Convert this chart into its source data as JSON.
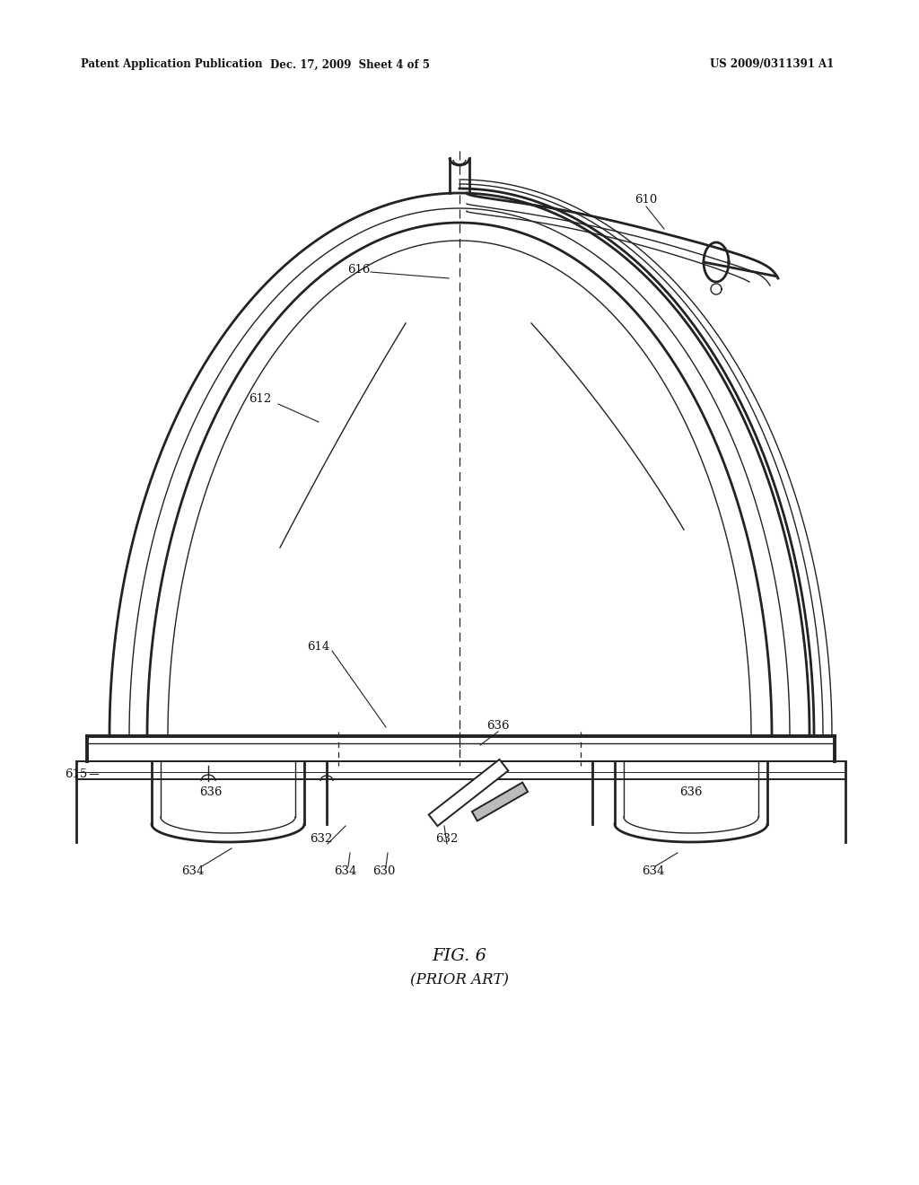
{
  "background_color": "#ffffff",
  "header_left": "Patent Application Publication",
  "header_middle": "Dec. 17, 2009  Sheet 4 of 5",
  "header_right": "US 2009/0311391 A1",
  "fig_label": "FIG. 6",
  "fig_sublabel": "(PRIOR ART)"
}
